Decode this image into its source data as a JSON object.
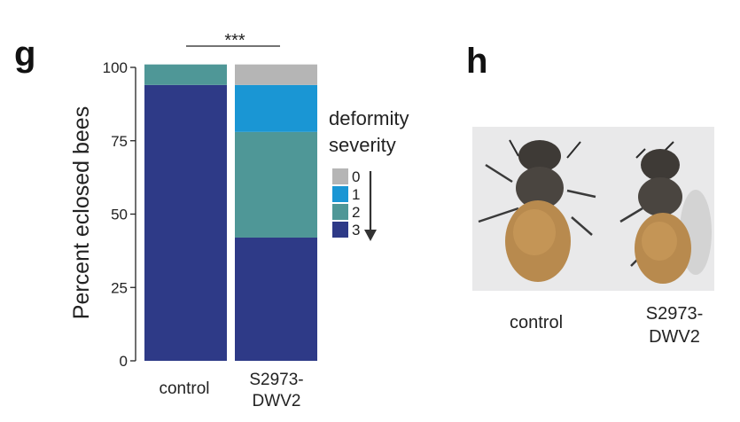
{
  "panels": {
    "left_letter": "g",
    "right_letter": "h"
  },
  "chart_data": {
    "type": "bar",
    "stacked": true,
    "categories": [
      "control",
      "S2973-DWV2"
    ],
    "series": [
      {
        "name": "3",
        "color": "#2e3a87",
        "values": [
          94,
          42
        ]
      },
      {
        "name": "2",
        "color": "#4f9797",
        "values": [
          7,
          36
        ]
      },
      {
        "name": "1",
        "color": "#1a96d4",
        "values": [
          0,
          16
        ]
      },
      {
        "name": "0",
        "color": "#b5b5b5",
        "values": [
          0,
          7
        ]
      }
    ],
    "title": "",
    "xlabel": "",
    "ylabel": "Percent eclosed bees",
    "ylim": [
      0,
      100
    ],
    "yticks": [
      0,
      25,
      50,
      75,
      100
    ],
    "significance": "***",
    "grid": false,
    "legend": {
      "title_line1": "deformity",
      "title_line2": "severity",
      "entries": [
        "0",
        "1",
        "2",
        "3"
      ],
      "placement": "right"
    }
  },
  "photo": {
    "captions": [
      "control",
      "S2973-DWV2"
    ],
    "background_color": "#e9e9ea"
  }
}
